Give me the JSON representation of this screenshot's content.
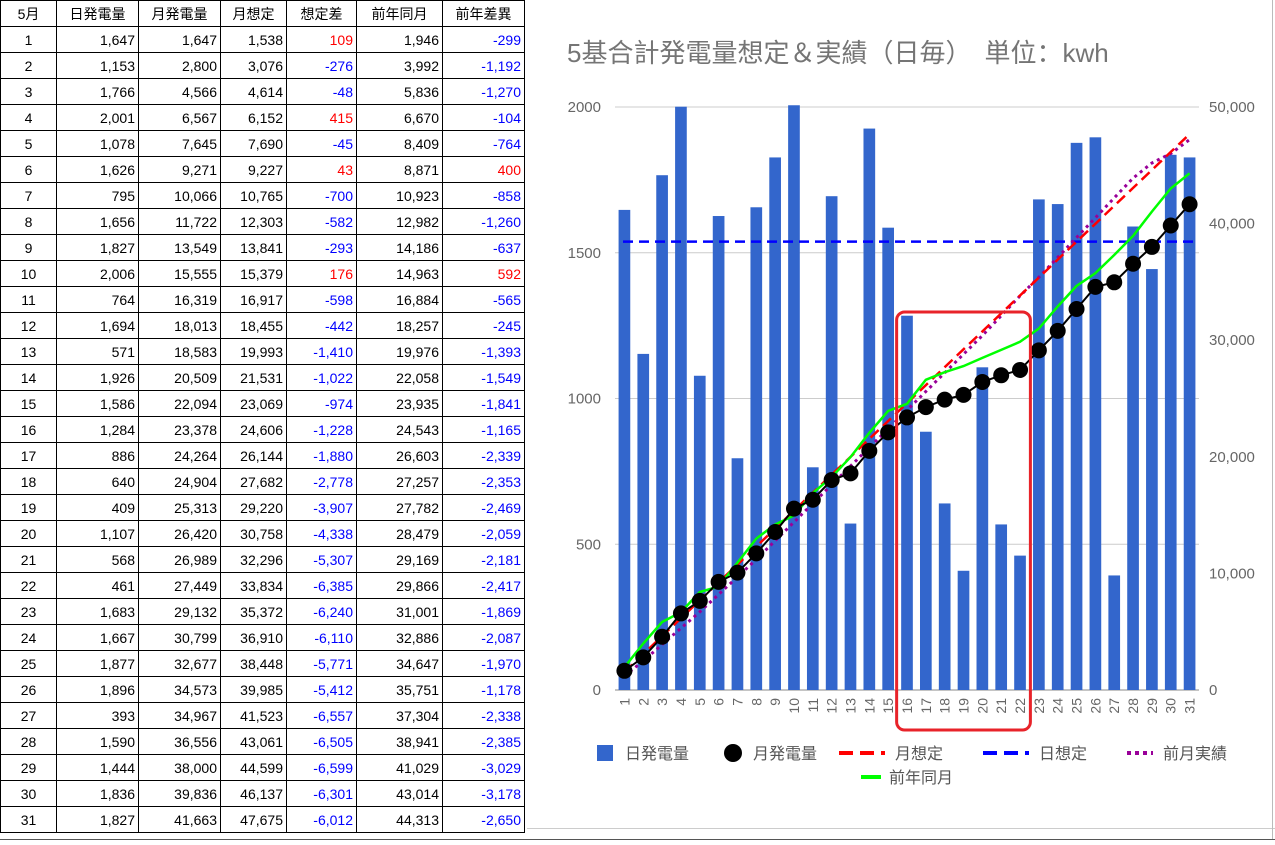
{
  "table": {
    "headers": [
      "5月",
      "日発電量",
      "月発電量",
      "月想定",
      "想定差",
      "前年同月",
      "前年差異"
    ],
    "rows": [
      [
        "1",
        "1,647",
        "1,647",
        "1,538",
        "109",
        "1,946",
        "-299"
      ],
      [
        "2",
        "1,153",
        "2,800",
        "3,076",
        "-276",
        "3,992",
        "-1,192"
      ],
      [
        "3",
        "1,766",
        "4,566",
        "4,614",
        "-48",
        "5,836",
        "-1,270"
      ],
      [
        "4",
        "2,001",
        "6,567",
        "6,152",
        "415",
        "6,670",
        "-104"
      ],
      [
        "5",
        "1,078",
        "7,645",
        "7,690",
        "-45",
        "8,409",
        "-764"
      ],
      [
        "6",
        "1,626",
        "9,271",
        "9,227",
        "43",
        "8,871",
        "400"
      ],
      [
        "7",
        "795",
        "10,066",
        "10,765",
        "-700",
        "10,923",
        "-858"
      ],
      [
        "8",
        "1,656",
        "11,722",
        "12,303",
        "-582",
        "12,982",
        "-1,260"
      ],
      [
        "9",
        "1,827",
        "13,549",
        "13,841",
        "-293",
        "14,186",
        "-637"
      ],
      [
        "10",
        "2,006",
        "15,555",
        "15,379",
        "176",
        "14,963",
        "592"
      ],
      [
        "11",
        "764",
        "16,319",
        "16,917",
        "-598",
        "16,884",
        "-565"
      ],
      [
        "12",
        "1,694",
        "18,013",
        "18,455",
        "-442",
        "18,257",
        "-245"
      ],
      [
        "13",
        "571",
        "18,583",
        "19,993",
        "-1,410",
        "19,976",
        "-1,393"
      ],
      [
        "14",
        "1,926",
        "20,509",
        "21,531",
        "-1,022",
        "22,058",
        "-1,549"
      ],
      [
        "15",
        "1,586",
        "22,094",
        "23,069",
        "-974",
        "23,935",
        "-1,841"
      ],
      [
        "16",
        "1,284",
        "23,378",
        "24,606",
        "-1,228",
        "24,543",
        "-1,165"
      ],
      [
        "17",
        "886",
        "24,264",
        "26,144",
        "-1,880",
        "26,603",
        "-2,339"
      ],
      [
        "18",
        "640",
        "24,904",
        "27,682",
        "-2,778",
        "27,257",
        "-2,353"
      ],
      [
        "19",
        "409",
        "25,313",
        "29,220",
        "-3,907",
        "27,782",
        "-2,469"
      ],
      [
        "20",
        "1,107",
        "26,420",
        "30,758",
        "-4,338",
        "28,479",
        "-2,059"
      ],
      [
        "21",
        "568",
        "26,989",
        "32,296",
        "-5,307",
        "29,169",
        "-2,181"
      ],
      [
        "22",
        "461",
        "27,449",
        "33,834",
        "-6,385",
        "29,866",
        "-2,417"
      ],
      [
        "23",
        "1,683",
        "29,132",
        "35,372",
        "-6,240",
        "31,001",
        "-1,869"
      ],
      [
        "24",
        "1,667",
        "30,799",
        "36,910",
        "-6,110",
        "32,886",
        "-2,087"
      ],
      [
        "25",
        "1,877",
        "32,677",
        "38,448",
        "-5,771",
        "34,647",
        "-1,970"
      ],
      [
        "26",
        "1,896",
        "34,573",
        "39,985",
        "-5,412",
        "35,751",
        "-1,178"
      ],
      [
        "27",
        "393",
        "34,967",
        "41,523",
        "-6,557",
        "37,304",
        "-2,338"
      ],
      [
        "28",
        "1,590",
        "36,556",
        "43,061",
        "-6,505",
        "38,941",
        "-2,385"
      ],
      [
        "29",
        "1,444",
        "38,000",
        "44,599",
        "-6,599",
        "41,029",
        "-3,029"
      ],
      [
        "30",
        "1,836",
        "39,836",
        "46,137",
        "-6,301",
        "43,014",
        "-3,178"
      ],
      [
        "31",
        "1,827",
        "41,663",
        "47,675",
        "-6,012",
        "44,313",
        "-2,650"
      ]
    ]
  },
  "colors": {
    "positive": "#ff0000",
    "negative": "#0000ff",
    "bar": "#3366cc",
    "monthly_marker": "#000000",
    "monthly_plan": "#ff0000",
    "daily_plan": "#0000ff",
    "prev_month": "#990099",
    "prev_year": "#00ff00",
    "highlight_box": "#e8232a",
    "grid": "#cccccc"
  },
  "chart_data": {
    "type": "bar",
    "title": "5基合計発電量想定＆実績（日毎）　単位：kwh",
    "categories": [
      "1",
      "2",
      "3",
      "4",
      "5",
      "6",
      "7",
      "8",
      "9",
      "10",
      "11",
      "12",
      "13",
      "14",
      "15",
      "16",
      "17",
      "18",
      "19",
      "20",
      "21",
      "22",
      "23",
      "24",
      "25",
      "26",
      "27",
      "28",
      "29",
      "30",
      "31"
    ],
    "left_axis": {
      "min": 0,
      "max": 2000,
      "ticks": [
        "0",
        "500",
        "1000",
        "1500",
        "2000"
      ]
    },
    "right_axis": {
      "min": 0,
      "max": 50000,
      "ticks": [
        "0",
        "10,000",
        "20,000",
        "30,000",
        "40,000",
        "50,000"
      ]
    },
    "grid": true,
    "legend_position": "bottom",
    "highlight_range": [
      "16",
      "22"
    ],
    "series": [
      {
        "name": "日発電量",
        "type": "bar",
        "axis": "left",
        "values": [
          1647,
          1153,
          1766,
          2001,
          1078,
          1626,
          795,
          1656,
          1827,
          2006,
          764,
          1694,
          571,
          1926,
          1586,
          1284,
          886,
          640,
          409,
          1107,
          568,
          461,
          1683,
          1667,
          1877,
          1896,
          393,
          1590,
          1444,
          1836,
          1827
        ]
      },
      {
        "name": "月発電量",
        "type": "line-marker",
        "axis": "right",
        "values": [
          1647,
          2800,
          4566,
          6567,
          7645,
          9271,
          10066,
          11722,
          13549,
          15555,
          16319,
          18013,
          18583,
          20509,
          22094,
          23378,
          24264,
          24904,
          25313,
          26420,
          26989,
          27449,
          29132,
          30799,
          32677,
          34573,
          34967,
          36556,
          38000,
          39836,
          41663
        ]
      },
      {
        "name": "月想定",
        "type": "dashed-line",
        "axis": "right",
        "values": [
          1538,
          3076,
          4614,
          6152,
          7690,
          9227,
          10765,
          12303,
          13841,
          15379,
          16917,
          18455,
          19993,
          21531,
          23069,
          24606,
          26144,
          27682,
          29220,
          30758,
          32296,
          33834,
          35372,
          36910,
          38448,
          39985,
          41523,
          43061,
          44599,
          46137,
          47675
        ]
      },
      {
        "name": "日想定",
        "type": "dashed-line",
        "axis": "left",
        "values": [
          1538,
          1538,
          1538,
          1538,
          1538,
          1538,
          1538,
          1538,
          1538,
          1538,
          1538,
          1538,
          1538,
          1538,
          1538,
          1538,
          1538,
          1538,
          1538,
          1538,
          1538,
          1538,
          1538,
          1538,
          1538,
          1538,
          1538,
          1538,
          1538,
          1538,
          1538
        ]
      },
      {
        "name": "前月実績",
        "type": "dotted-line",
        "axis": "right",
        "values": [
          1200,
          2500,
          3900,
          5300,
          6700,
          8200,
          9700,
          11200,
          12800,
          14400,
          16000,
          17600,
          19200,
          20800,
          22400,
          24000,
          25600,
          27200,
          28800,
          30400,
          32100,
          33800,
          35400,
          37100,
          38800,
          40500,
          42200,
          43900,
          45200,
          46000,
          47200
        ]
      },
      {
        "name": "前年同月",
        "type": "line",
        "axis": "right",
        "values": [
          1946,
          3992,
          5836,
          6670,
          8409,
          8871,
          10923,
          12982,
          14186,
          14963,
          16884,
          18257,
          19976,
          22058,
          23935,
          24543,
          26603,
          27257,
          27782,
          28479,
          29169,
          29866,
          31001,
          32886,
          34647,
          35751,
          37304,
          38941,
          41029,
          43014,
          44313
        ]
      }
    ]
  }
}
